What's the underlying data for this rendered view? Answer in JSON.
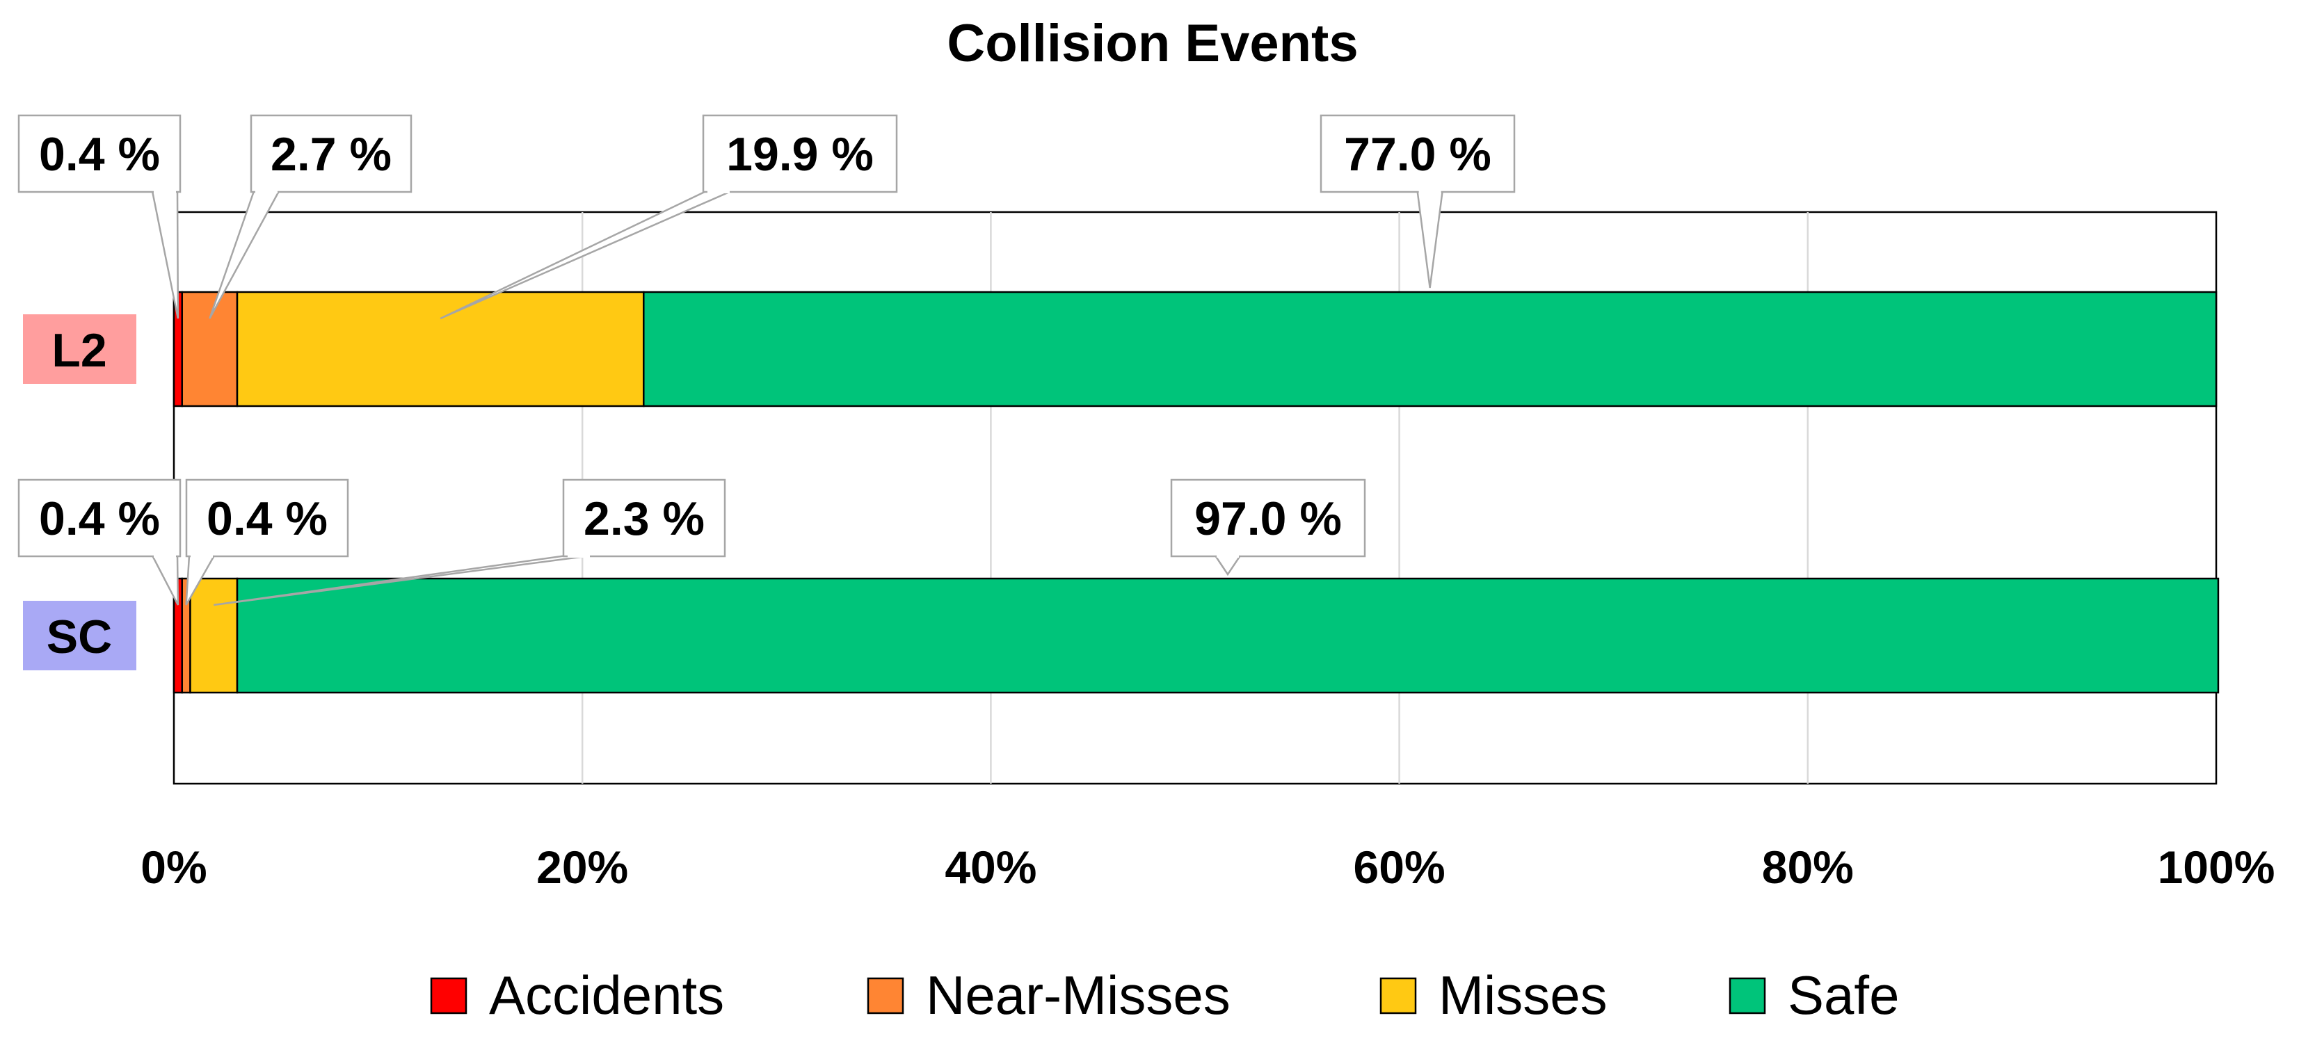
{
  "chart_data": {
    "type": "bar",
    "orientation": "horizontal",
    "stacked": true,
    "title": "Collision Events",
    "xlim": [
      0,
      100
    ],
    "x_ticks": [
      "0%",
      "20%",
      "40%",
      "60%",
      "80%",
      "100%"
    ],
    "grid": true,
    "legend_position": "bottom",
    "categories": [
      "L2",
      "SC"
    ],
    "category_colors": [
      "#ff9e9e",
      "#a9a9f5"
    ],
    "series": [
      {
        "name": "Accidents",
        "color": "#ff0000",
        "values": [
          0.4,
          0.4
        ]
      },
      {
        "name": "Near-Misses",
        "color": "#ff8533",
        "values": [
          2.7,
          0.4
        ]
      },
      {
        "name": "Misses",
        "color": "#ffc913",
        "values": [
          19.9,
          2.3
        ]
      },
      {
        "name": "Safe",
        "color": "#00c47a",
        "values": [
          77.0,
          97.0
        ]
      }
    ],
    "data_labels": [
      [
        "0.4 %",
        "2.7 %",
        "19.9 %",
        "77.0 %"
      ],
      [
        "0.4 %",
        "0.4 %",
        "2.3 %",
        "97.0 %"
      ]
    ]
  }
}
